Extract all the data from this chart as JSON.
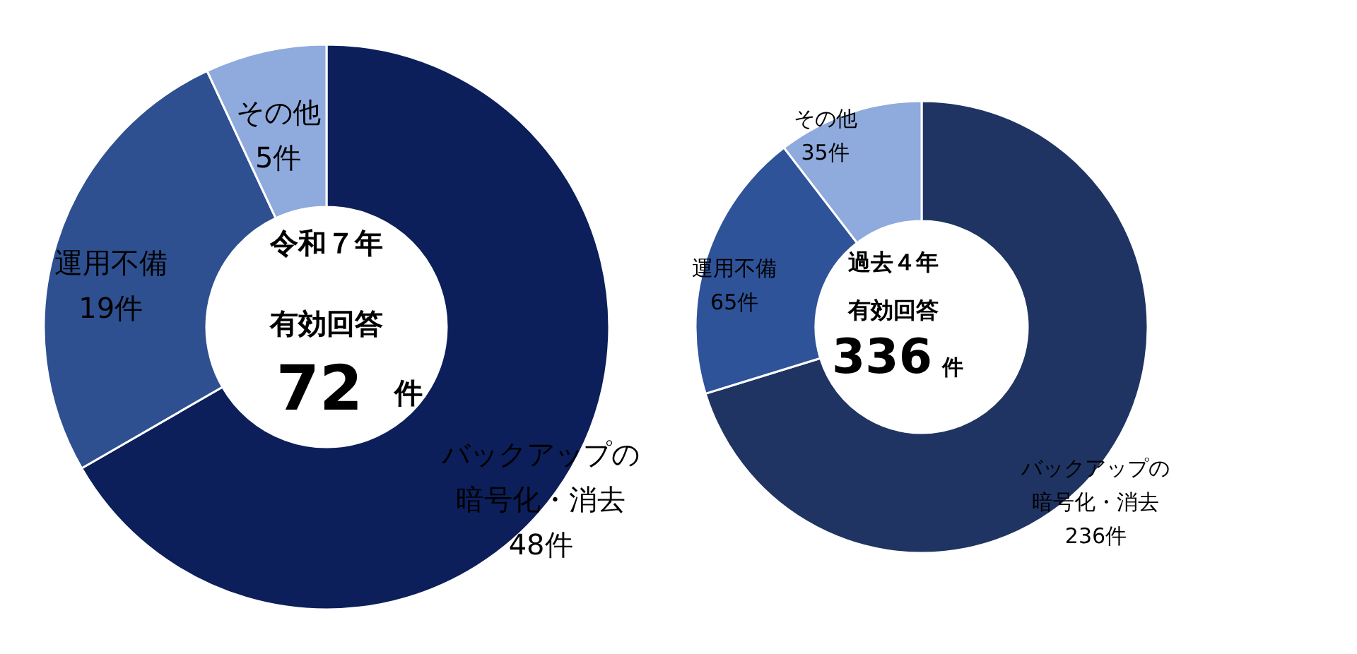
{
  "chart_data": [
    {
      "type": "donut",
      "categories": [
        "バックアップの暗号化・消去",
        "運用不備",
        "その他"
      ],
      "values": [
        48,
        19,
        5
      ],
      "colors": [
        "#0c1f5a",
        "#2e5090",
        "#8faadc"
      ],
      "value_labels": [
        "48件",
        "19件",
        "5件"
      ],
      "annotations": [
        "令和７年",
        "有効回答",
        "72",
        "件"
      ]
    },
    {
      "type": "donut",
      "categories": [
        "バックアップの暗号化・消去",
        "運用不備",
        "その他"
      ],
      "values": [
        236,
        65,
        35
      ],
      "colors": [
        "#1f3462",
        "#2e5399",
        "#8faadc"
      ],
      "value_labels": [
        "236件",
        "65件",
        "35件"
      ],
      "annotations": [
        "過去４年",
        "有効回答",
        "336",
        "件"
      ]
    }
  ]
}
